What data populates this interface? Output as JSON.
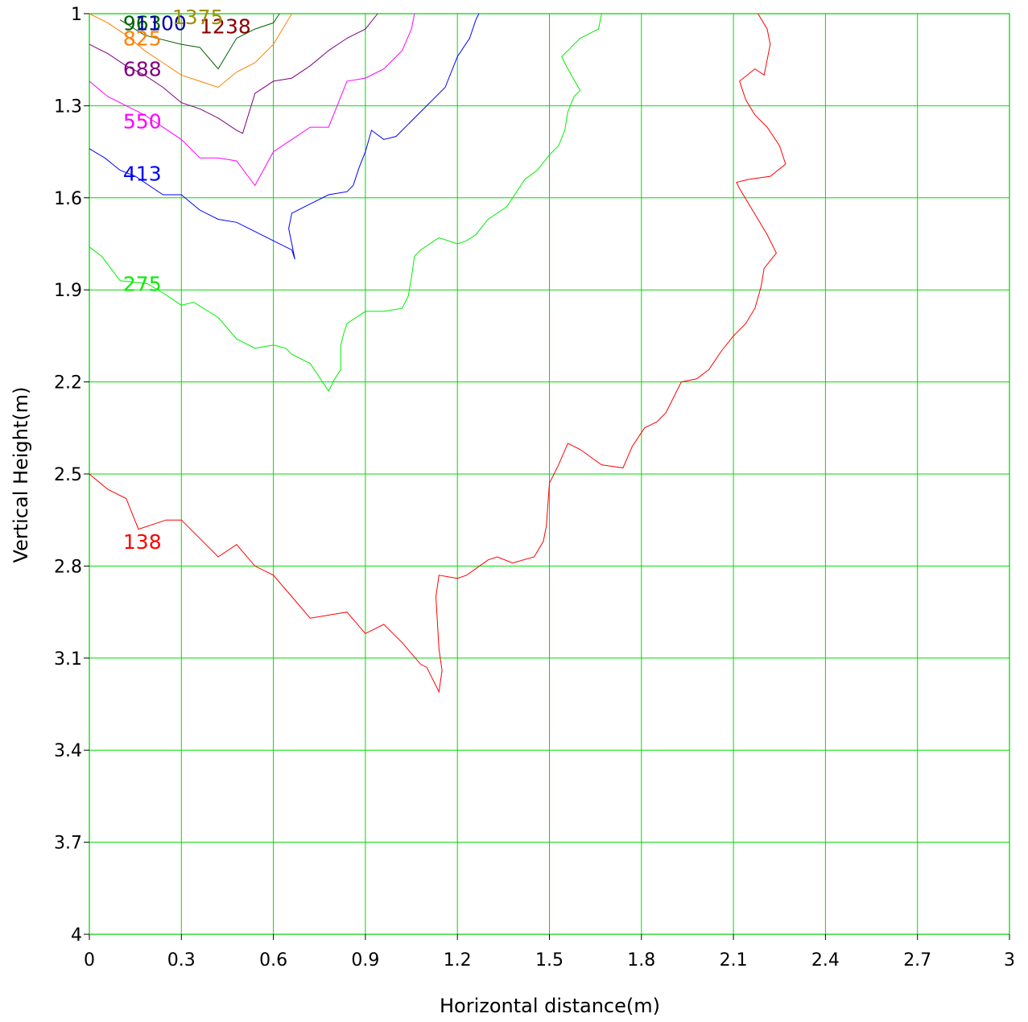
{
  "chart_data": {
    "type": "line",
    "subtype": "contour",
    "xlabel": "Horizontal distance(m)",
    "ylabel": "Vertical Height(m)",
    "xlim": [
      0,
      3
    ],
    "ylim": [
      1,
      4
    ],
    "y_axis_inverted": true,
    "grid": true,
    "grid_color": "#00dd00",
    "x_ticks": [
      "0",
      "0.3",
      "0.6",
      "0.9",
      "1.2",
      "1.5",
      "1.8",
      "2.1",
      "2.4",
      "2.7",
      "3"
    ],
    "y_ticks": [
      "1",
      "1.3",
      "1.6",
      "1.9",
      "2.2",
      "2.5",
      "2.8",
      "3.1",
      "3.4",
      "3.7",
      "4"
    ],
    "series": [
      {
        "name": "138",
        "color": "#ff0000",
        "label_at": [
          0.11,
          2.72
        ],
        "points": [
          [
            0,
            2.5
          ],
          [
            0.06,
            2.55
          ],
          [
            0.12,
            2.58
          ],
          [
            0.16,
            2.68
          ],
          [
            0.25,
            2.65
          ],
          [
            0.3,
            2.65
          ],
          [
            0.42,
            2.77
          ],
          [
            0.48,
            2.73
          ],
          [
            0.54,
            2.8
          ],
          [
            0.6,
            2.83
          ],
          [
            0.66,
            2.9
          ],
          [
            0.72,
            2.97
          ],
          [
            0.78,
            2.96
          ],
          [
            0.84,
            2.95
          ],
          [
            0.9,
            3.02
          ],
          [
            0.96,
            2.99
          ],
          [
            1.02,
            3.05
          ],
          [
            1.08,
            3.12
          ],
          [
            1.1,
            3.13
          ],
          [
            1.14,
            3.21
          ],
          [
            1.15,
            3.14
          ],
          [
            1.14,
            3.07
          ],
          [
            1.13,
            2.9
          ],
          [
            1.14,
            2.83
          ],
          [
            1.2,
            2.84
          ],
          [
            1.23,
            2.83
          ],
          [
            1.3,
            2.78
          ],
          [
            1.33,
            2.77
          ],
          [
            1.38,
            2.79
          ],
          [
            1.45,
            2.77
          ],
          [
            1.48,
            2.72
          ],
          [
            1.49,
            2.67
          ],
          [
            1.5,
            2.53
          ],
          [
            1.53,
            2.47
          ],
          [
            1.56,
            2.4
          ],
          [
            1.6,
            2.42
          ],
          [
            1.67,
            2.47
          ],
          [
            1.74,
            2.48
          ],
          [
            1.77,
            2.41
          ],
          [
            1.81,
            2.35
          ],
          [
            1.85,
            2.33
          ],
          [
            1.88,
            2.3
          ],
          [
            1.9,
            2.26
          ],
          [
            1.93,
            2.2
          ],
          [
            1.98,
            2.19
          ],
          [
            2.02,
            2.16
          ],
          [
            2.06,
            2.1
          ],
          [
            2.1,
            2.05
          ],
          [
            2.14,
            2.01
          ],
          [
            2.17,
            1.96
          ],
          [
            2.19,
            1.89
          ],
          [
            2.2,
            1.83
          ],
          [
            2.24,
            1.78
          ],
          [
            2.21,
            1.72
          ],
          [
            2.18,
            1.67
          ],
          [
            2.15,
            1.62
          ],
          [
            2.12,
            1.57
          ],
          [
            2.11,
            1.55
          ],
          [
            2.15,
            1.54
          ],
          [
            2.22,
            1.53
          ],
          [
            2.27,
            1.49
          ],
          [
            2.25,
            1.43
          ],
          [
            2.21,
            1.37
          ],
          [
            2.17,
            1.33
          ],
          [
            2.14,
            1.28
          ],
          [
            2.12,
            1.22
          ],
          [
            2.17,
            1.18
          ],
          [
            2.2,
            1.2
          ],
          [
            2.22,
            1.1
          ],
          [
            2.21,
            1.05
          ],
          [
            2.18,
            1.0
          ]
        ]
      },
      {
        "name": "275",
        "color": "#00ee00",
        "label_at": [
          0.11,
          1.88
        ],
        "points": [
          [
            0,
            1.76
          ],
          [
            0.04,
            1.79
          ],
          [
            0.1,
            1.87
          ],
          [
            0.19,
            1.88
          ],
          [
            0.24,
            1.91
          ],
          [
            0.3,
            1.95
          ],
          [
            0.34,
            1.94
          ],
          [
            0.42,
            1.99
          ],
          [
            0.48,
            2.06
          ],
          [
            0.54,
            2.09
          ],
          [
            0.6,
            2.08
          ],
          [
            0.64,
            2.09
          ],
          [
            0.66,
            2.11
          ],
          [
            0.72,
            2.14
          ],
          [
            0.78,
            2.23
          ],
          [
            0.8,
            2.19
          ],
          [
            0.82,
            2.16
          ],
          [
            0.82,
            2.08
          ],
          [
            0.83,
            2.04
          ],
          [
            0.84,
            2.01
          ],
          [
            0.9,
            1.97
          ],
          [
            0.96,
            1.97
          ],
          [
            1.02,
            1.96
          ],
          [
            1.04,
            1.92
          ],
          [
            1.05,
            1.86
          ],
          [
            1.06,
            1.79
          ],
          [
            1.08,
            1.77
          ],
          [
            1.14,
            1.73
          ],
          [
            1.2,
            1.75
          ],
          [
            1.23,
            1.74
          ],
          [
            1.26,
            1.72
          ],
          [
            1.3,
            1.67
          ],
          [
            1.36,
            1.63
          ],
          [
            1.38,
            1.6
          ],
          [
            1.4,
            1.57
          ],
          [
            1.42,
            1.54
          ],
          [
            1.46,
            1.51
          ],
          [
            1.5,
            1.46
          ],
          [
            1.53,
            1.43
          ],
          [
            1.55,
            1.38
          ],
          [
            1.56,
            1.32
          ],
          [
            1.58,
            1.27
          ],
          [
            1.6,
            1.25
          ],
          [
            1.56,
            1.18
          ],
          [
            1.54,
            1.14
          ],
          [
            1.56,
            1.12
          ],
          [
            1.6,
            1.08
          ],
          [
            1.64,
            1.06
          ],
          [
            1.66,
            1.05
          ],
          [
            1.67,
            1.0
          ]
        ]
      },
      {
        "name": "413",
        "color": "#0000ff",
        "label_at": [
          0.11,
          1.52
        ],
        "points": [
          [
            0,
            1.44
          ],
          [
            0.05,
            1.47
          ],
          [
            0.1,
            1.51
          ],
          [
            0.15,
            1.53
          ],
          [
            0.24,
            1.59
          ],
          [
            0.3,
            1.59
          ],
          [
            0.36,
            1.64
          ],
          [
            0.42,
            1.67
          ],
          [
            0.48,
            1.68
          ],
          [
            0.54,
            1.71
          ],
          [
            0.6,
            1.74
          ],
          [
            0.66,
            1.77
          ],
          [
            0.67,
            1.8
          ],
          [
            0.66,
            1.75
          ],
          [
            0.65,
            1.7
          ],
          [
            0.66,
            1.65
          ],
          [
            0.72,
            1.62
          ],
          [
            0.78,
            1.59
          ],
          [
            0.84,
            1.58
          ],
          [
            0.86,
            1.56
          ],
          [
            0.88,
            1.5
          ],
          [
            0.9,
            1.45
          ],
          [
            0.92,
            1.38
          ],
          [
            0.96,
            1.41
          ],
          [
            1.0,
            1.4
          ],
          [
            1.04,
            1.36
          ],
          [
            1.08,
            1.32
          ],
          [
            1.12,
            1.28
          ],
          [
            1.16,
            1.24
          ],
          [
            1.18,
            1.19
          ],
          [
            1.2,
            1.14
          ],
          [
            1.24,
            1.08
          ],
          [
            1.26,
            1.02
          ],
          [
            1.27,
            1.0
          ]
        ]
      },
      {
        "name": "550",
        "color": "#ff00ff",
        "label_at": [
          0.11,
          1.35
        ],
        "points": [
          [
            0,
            1.22
          ],
          [
            0.06,
            1.27
          ],
          [
            0.12,
            1.3
          ],
          [
            0.18,
            1.33
          ],
          [
            0.24,
            1.37
          ],
          [
            0.3,
            1.41
          ],
          [
            0.36,
            1.47
          ],
          [
            0.42,
            1.47
          ],
          [
            0.48,
            1.48
          ],
          [
            0.54,
            1.56
          ],
          [
            0.6,
            1.45
          ],
          [
            0.66,
            1.41
          ],
          [
            0.72,
            1.37
          ],
          [
            0.78,
            1.37
          ],
          [
            0.84,
            1.22
          ],
          [
            0.9,
            1.21
          ],
          [
            0.96,
            1.18
          ],
          [
            1.02,
            1.12
          ],
          [
            1.05,
            1.05
          ],
          [
            1.06,
            1.0
          ]
        ]
      },
      {
        "name": "688",
        "color": "#800080",
        "label_at": [
          0.11,
          1.18
        ],
        "points": [
          [
            0,
            1.1
          ],
          [
            0.06,
            1.13
          ],
          [
            0.12,
            1.17
          ],
          [
            0.18,
            1.2
          ],
          [
            0.24,
            1.24
          ],
          [
            0.3,
            1.29
          ],
          [
            0.36,
            1.31
          ],
          [
            0.42,
            1.34
          ],
          [
            0.48,
            1.38
          ],
          [
            0.5,
            1.39
          ],
          [
            0.54,
            1.26
          ],
          [
            0.6,
            1.22
          ],
          [
            0.66,
            1.21
          ],
          [
            0.72,
            1.17
          ],
          [
            0.78,
            1.12
          ],
          [
            0.84,
            1.08
          ],
          [
            0.9,
            1.05
          ],
          [
            0.94,
            1.0
          ]
        ]
      },
      {
        "name": "825",
        "color": "#ff8000",
        "label_at": [
          0.11,
          1.08
        ],
        "points": [
          [
            0,
            1.0
          ],
          [
            0.06,
            1.03
          ],
          [
            0.12,
            1.07
          ],
          [
            0.18,
            1.12
          ],
          [
            0.24,
            1.16
          ],
          [
            0.3,
            1.2
          ],
          [
            0.36,
            1.22
          ],
          [
            0.42,
            1.24
          ],
          [
            0.48,
            1.19
          ],
          [
            0.54,
            1.16
          ],
          [
            0.6,
            1.1
          ],
          [
            0.63,
            1.05
          ],
          [
            0.66,
            1.0
          ]
        ]
      },
      {
        "name": "963",
        "color": "#006400",
        "label_at": [
          0.11,
          1.03
        ],
        "points": [
          [
            0.1,
            1.02
          ],
          [
            0.18,
            1.07
          ],
          [
            0.3,
            1.1
          ],
          [
            0.36,
            1.11
          ],
          [
            0.42,
            1.18
          ],
          [
            0.48,
            1.08
          ],
          [
            0.54,
            1.05
          ],
          [
            0.6,
            1.03
          ],
          [
            0.62,
            1.0
          ]
        ]
      },
      {
        "name": "1100",
        "color": "#0000aa",
        "label_at": [
          0.15,
          1.03
        ],
        "points": []
      },
      {
        "name": "1238",
        "color": "#8b0000",
        "label_at": [
          0.36,
          1.04
        ],
        "points": []
      },
      {
        "name": "1375",
        "color": "#a09000",
        "label_at": [
          0.27,
          1.01
        ],
        "points": []
      }
    ]
  }
}
